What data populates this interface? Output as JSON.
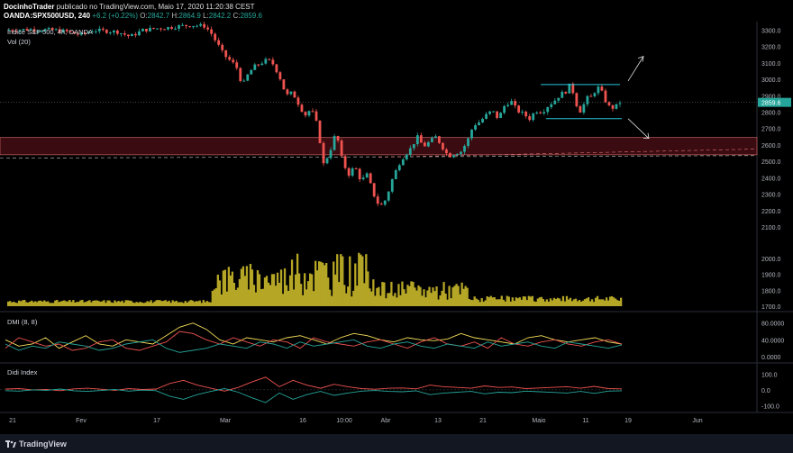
{
  "header": {
    "user": "DocinhoTrader",
    "published": " publicado no TradingView.com, Maio 17, 2020 11:20:38 CEST",
    "symbol": "OANDA:SPX500USD, 240",
    "change": "+6.2 (+0.22%)",
    "o_label": "O:",
    "o": "2842.7",
    "h_label": "H:",
    "h": "2864.9",
    "l_label": "L:",
    "l": "2842.2",
    "c_label": "C:",
    "c": "2859.6"
  },
  "footer": {
    "logo": "TradingView"
  },
  "chart_data": [
    {
      "type": "candlestick",
      "title": "Índice S&P 500, 4h, OANDA",
      "ylim": [
        2100,
        3330
      ],
      "y_ticks": [
        "3300.0",
        "3200.0",
        "3100.0",
        "3000.0",
        "2900.0",
        "2800.0",
        "2700.0",
        "2600.0",
        "2500.0",
        "2400.0",
        "2300.0",
        "2200.0",
        "2100.0"
      ],
      "last_price_label": "2859.6",
      "last_price": 2859.6,
      "colors": {
        "up": "#26a69a",
        "down": "#ef5350",
        "accent": "#2962ff"
      },
      "x_labels": [
        "21",
        "Fev",
        "17",
        "Mar",
        "16",
        "10:00",
        "Abr",
        "13",
        "21",
        "Maio",
        "11",
        "19",
        "Jun"
      ],
      "close_path": [
        [
          0,
          3300
        ],
        [
          0.04,
          3305
        ],
        [
          0.08,
          3300
        ],
        [
          0.1,
          3290
        ],
        [
          0.12,
          3270
        ],
        [
          0.14,
          3300
        ],
        [
          0.18,
          3290
        ],
        [
          0.2,
          3260
        ],
        [
          0.22,
          3300
        ],
        [
          0.24,
          3310
        ],
        [
          0.26,
          3315
        ],
        [
          0.28,
          3325
        ],
        [
          0.3,
          3330
        ],
        [
          0.32,
          3325
        ],
        [
          0.33,
          3280
        ],
        [
          0.35,
          3150
        ],
        [
          0.37,
          3080
        ],
        [
          0.38,
          2960
        ],
        [
          0.39,
          3040
        ],
        [
          0.4,
          3080
        ],
        [
          0.42,
          3120
        ],
        [
          0.43,
          3090
        ],
        [
          0.44,
          3010
        ],
        [
          0.45,
          2900
        ],
        [
          0.46,
          2920
        ],
        [
          0.47,
          2850
        ],
        [
          0.48,
          2780
        ],
        [
          0.49,
          2820
        ],
        [
          0.5,
          2720
        ],
        [
          0.51,
          2480
        ],
        [
          0.52,
          2560
        ],
        [
          0.53,
          2680
        ],
        [
          0.54,
          2500
        ],
        [
          0.55,
          2420
        ],
        [
          0.56,
          2470
        ],
        [
          0.57,
          2380
        ],
        [
          0.58,
          2420
        ],
        [
          0.59,
          2300
        ],
        [
          0.6,
          2220
        ],
        [
          0.61,
          2270
        ],
        [
          0.62,
          2390
        ],
        [
          0.63,
          2480
        ],
        [
          0.64,
          2540
        ],
        [
          0.65,
          2580
        ],
        [
          0.66,
          2650
        ],
        [
          0.67,
          2590
        ],
        [
          0.68,
          2620
        ],
        [
          0.69,
          2650
        ],
        [
          0.7,
          2590
        ],
        [
          0.71,
          2530
        ],
        [
          0.72,
          2550
        ],
        [
          0.73,
          2560
        ],
        [
          0.74,
          2620
        ],
        [
          0.75,
          2720
        ],
        [
          0.76,
          2740
        ],
        [
          0.77,
          2780
        ],
        [
          0.78,
          2810
        ],
        [
          0.79,
          2760
        ],
        [
          0.8,
          2840
        ],
        [
          0.81,
          2870
        ],
        [
          0.82,
          2810
        ],
        [
          0.83,
          2790
        ],
        [
          0.84,
          2760
        ],
        [
          0.85,
          2810
        ],
        [
          0.86,
          2800
        ],
        [
          0.87,
          2840
        ],
        [
          0.88,
          2870
        ],
        [
          0.89,
          2910
        ],
        [
          0.9,
          2930
        ],
        [
          0.905,
          2970
        ],
        [
          0.91,
          2920
        ],
        [
          0.915,
          2850
        ],
        [
          0.92,
          2800
        ],
        [
          0.925,
          2830
        ],
        [
          0.93,
          2870
        ],
        [
          0.935,
          2900
        ],
        [
          0.94,
          2890
        ],
        [
          0.945,
          2930
        ],
        [
          0.95,
          2950
        ],
        [
          0.955,
          2930
        ],
        [
          0.96,
          2880
        ],
        [
          0.965,
          2850
        ],
        [
          0.97,
          2820
        ],
        [
          0.975,
          2830
        ],
        [
          0.98,
          2840
        ],
        [
          0.985,
          2860
        ]
      ],
      "zone": {
        "from": 2540,
        "to": 2645
      },
      "channel": {
        "top": 2968,
        "bottom": 2760
      },
      "projection_up_target": 3140,
      "projection_down_target": 2640
    },
    {
      "type": "bar",
      "title": "Vol (20)",
      "ylim": [
        1700,
        2140
      ],
      "y_ticks": [
        "2000.0",
        "1900.0",
        "1800.0",
        "1700.0"
      ],
      "color": "#b5a626"
    },
    {
      "type": "line",
      "title": "DMI (8, 8)",
      "ylim": [
        0,
        90
      ],
      "y_ticks": [
        "80.0000",
        "40.0000",
        "0.0000"
      ],
      "series": [
        {
          "color": "#f7e05a",
          "values": [
            40,
            25,
            30,
            45,
            20,
            35,
            50,
            30,
            25,
            40,
            35,
            30,
            50,
            70,
            80,
            65,
            40,
            30,
            45,
            40,
            35,
            45,
            50,
            40,
            30,
            45,
            55,
            50,
            40,
            35,
            45,
            40,
            38,
            42,
            55,
            45,
            40,
            35,
            30,
            45,
            50,
            40,
            35,
            40,
            45,
            35,
            30
          ]
        },
        {
          "color": "#ef5350",
          "values": [
            20,
            45,
            35,
            25,
            30,
            15,
            20,
            35,
            40,
            20,
            15,
            25,
            35,
            60,
            55,
            40,
            30,
            45,
            35,
            25,
            40,
            35,
            20,
            45,
            35,
            30,
            25,
            35,
            40,
            30,
            20,
            35,
            45,
            30,
            25,
            35,
            20,
            45,
            30,
            25,
            35,
            40,
            30,
            25,
            35,
            40,
            30
          ]
        },
        {
          "color": "#26a69a",
          "values": [
            30,
            15,
            25,
            20,
            35,
            30,
            25,
            15,
            20,
            30,
            35,
            40,
            20,
            10,
            15,
            20,
            30,
            25,
            20,
            35,
            30,
            20,
            35,
            25,
            30,
            35,
            40,
            25,
            20,
            30,
            35,
            25,
            20,
            30,
            25,
            20,
            35,
            25,
            30,
            35,
            25,
            20,
            35,
            30,
            25,
            20,
            28
          ]
        }
      ]
    },
    {
      "type": "line",
      "title": "Didi Index",
      "ylim": [
        -120,
        130
      ],
      "y_ticks": [
        "100.0",
        "0.0",
        "-100.0"
      ],
      "series": [
        {
          "color": "#ef5350",
          "values": [
            5,
            8,
            0,
            3,
            -5,
            6,
            10,
            4,
            -3,
            8,
            2,
            5,
            40,
            60,
            30,
            10,
            -8,
            15,
            50,
            80,
            20,
            60,
            30,
            10,
            35,
            20,
            8,
            4,
            10,
            12,
            6,
            30,
            20,
            15,
            10,
            25,
            15,
            18,
            8,
            12,
            16,
            20,
            10,
            22,
            8,
            6
          ]
        },
        {
          "color": "#26a69a",
          "values": [
            -5,
            -8,
            0,
            -3,
            5,
            -6,
            -10,
            -4,
            3,
            -8,
            -2,
            -5,
            -40,
            -60,
            -30,
            -10,
            8,
            -15,
            -50,
            -80,
            -20,
            -60,
            -30,
            -10,
            -35,
            -20,
            -8,
            -4,
            -10,
            -12,
            -6,
            -30,
            -20,
            -15,
            -10,
            -25,
            -15,
            -18,
            -8,
            -12,
            -16,
            -20,
            -10,
            -22,
            -8,
            -6
          ]
        }
      ]
    }
  ]
}
